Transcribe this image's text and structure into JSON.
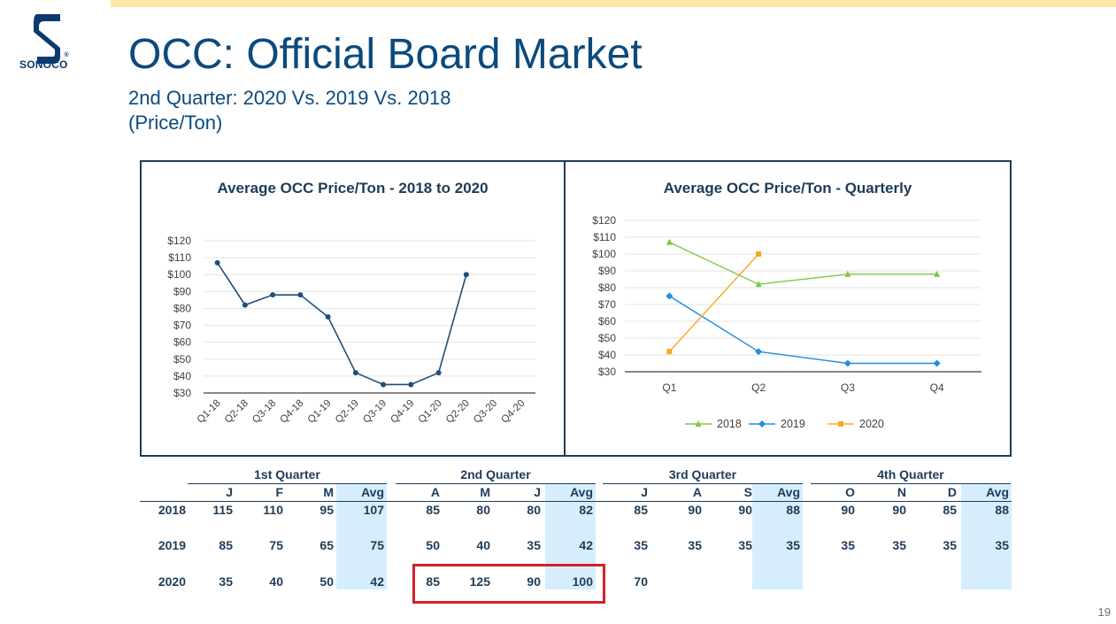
{
  "brand": {
    "logo_text": "SONOCO",
    "registered_mark": "®"
  },
  "page": {
    "title": "OCC: Official Board Market",
    "subtitle_line1": "2nd Quarter: 2020 Vs. 2019 Vs. 2018",
    "subtitle_line2": "(Price/Ton)",
    "page_number": "19"
  },
  "chart_data": [
    {
      "type": "line",
      "title": "Average OCC Price/Ton - 2018 to 2020",
      "categories": [
        "Q1-18",
        "Q2-18",
        "Q3-18",
        "Q4-18",
        "Q1-19",
        "Q2-19",
        "Q3-19",
        "Q4-19",
        "Q1-20",
        "Q2-20",
        "Q3-20",
        "Q4-20"
      ],
      "values": [
        107,
        82,
        88,
        88,
        75,
        42,
        35,
        35,
        42,
        100,
        null,
        null
      ],
      "ylim": [
        30,
        120
      ],
      "yticks": [
        "$30",
        "$40",
        "$50",
        "$60",
        "$70",
        "$80",
        "$90",
        "$100",
        "$110",
        "$120"
      ],
      "color": "#1f4e79"
    },
    {
      "type": "line",
      "title": "Average OCC Price/Ton - Quarterly",
      "categories": [
        "Q1",
        "Q2",
        "Q3",
        "Q4"
      ],
      "series": [
        {
          "name": "2018",
          "values": [
            107,
            82,
            88,
            88
          ],
          "color": "#7ac943",
          "marker": "triangle"
        },
        {
          "name": "2019",
          "values": [
            75,
            42,
            35,
            35
          ],
          "color": "#1f8fe0",
          "marker": "diamond"
        },
        {
          "name": "2020",
          "values": [
            42,
            100,
            null,
            null
          ],
          "color": "#f7a823",
          "marker": "square"
        }
      ],
      "ylim": [
        30,
        120
      ],
      "yticks": [
        "$30",
        "$40",
        "$50",
        "$60",
        "$70",
        "$80",
        "$90",
        "$100",
        "$110",
        "$120"
      ],
      "legend": "bottom"
    },
    {
      "type": "table",
      "quarters": [
        "1st  Quarter",
        "2nd Quarter",
        "3rd Quarter",
        "4th Quarter"
      ],
      "columns": [
        "J",
        "F",
        "M",
        "Avg",
        "A",
        "M",
        "J",
        "Avg",
        "J",
        "A",
        "S",
        "Avg",
        "O",
        "N",
        "D",
        "Avg"
      ],
      "rows": [
        {
          "year": "2018",
          "values": [
            "115",
            "110",
            "95",
            "107",
            "85",
            "80",
            "80",
            "82",
            "85",
            "90",
            "90",
            "88",
            "90",
            "90",
            "85",
            "88"
          ]
        },
        {
          "year": "2019",
          "values": [
            "85",
            "75",
            "65",
            "75",
            "50",
            "40",
            "35",
            "42",
            "35",
            "35",
            "35",
            "35",
            "35",
            "35",
            "35",
            "35"
          ]
        },
        {
          "year": "2020",
          "values": [
            "35",
            "40",
            "50",
            "42",
            "85",
            "125",
            "90",
            "100",
            "70",
            "",
            "",
            "",
            "",
            "",
            "",
            ""
          ]
        }
      ],
      "highlight_color": "#d6eefc",
      "callout_color": "#d6212d"
    }
  ]
}
